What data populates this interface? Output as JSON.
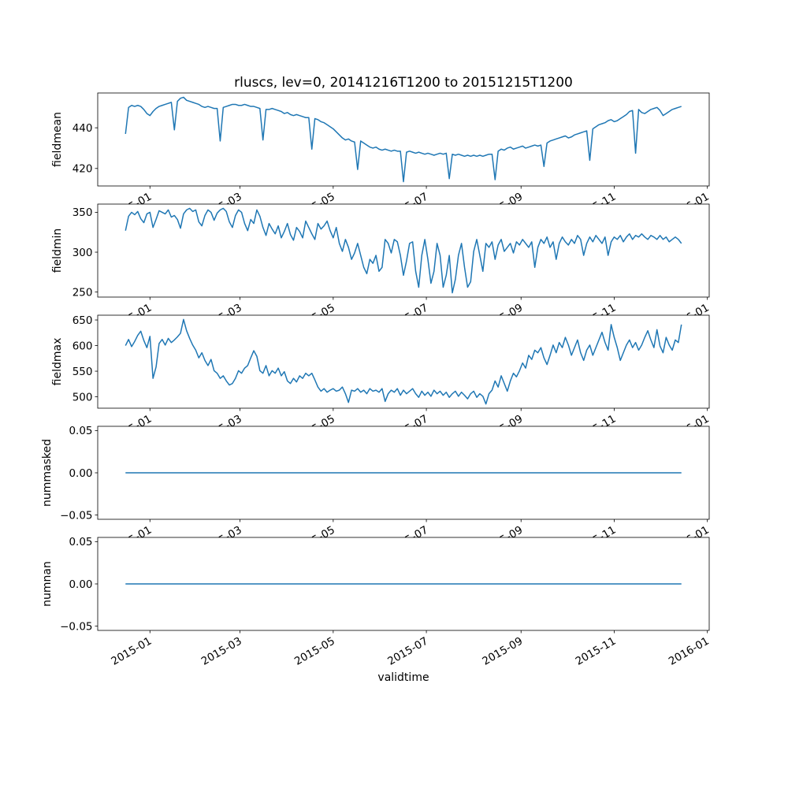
{
  "colors": {
    "line": "#1f77b4",
    "spine": "#000000",
    "text": "#000000",
    "background": "#ffffff"
  },
  "chart_data": {
    "type": "line",
    "title": "rluscs, lev=0, 20141216T1200 to 20151215T1200",
    "xlabel": "validtime",
    "x_unit": "days since 2014-12-16T12:00",
    "x_start_day": 0,
    "x_end_day": 364,
    "x_step_days": 2,
    "xlim_days": [
      -18.2,
      382.2
    ],
    "x_ticks": [
      {
        "day": 16,
        "label": "2015-01"
      },
      {
        "day": 75,
        "label": "2015-03"
      },
      {
        "day": 136,
        "label": "2015-05"
      },
      {
        "day": 197,
        "label": "2015-07"
      },
      {
        "day": 259,
        "label": "2015-09"
      },
      {
        "day": 320,
        "label": "2015-11"
      },
      {
        "day": 381,
        "label": "2016-01"
      }
    ],
    "subplots": [
      {
        "ylabel": "fieldmean",
        "ylim": [
          411.4,
          457.1
        ],
        "yticks": [
          {
            "value": 420,
            "label": "420"
          },
          {
            "value": 440,
            "label": "440"
          }
        ],
        "values": [
          437.0,
          450.0,
          451.0,
          450.5,
          451.0,
          450.5,
          449.0,
          447.0,
          446.0,
          448.0,
          449.5,
          450.5,
          451.0,
          451.5,
          452.0,
          452.5,
          439.0,
          453.0,
          454.5,
          455.0,
          453.5,
          453.0,
          452.5,
          452.0,
          451.5,
          450.5,
          450.0,
          450.5,
          450.0,
          449.5,
          449.5,
          433.5,
          450.0,
          450.5,
          451.0,
          451.5,
          451.5,
          451.0,
          451.0,
          451.5,
          451.0,
          450.5,
          450.5,
          450.0,
          449.5,
          434.0,
          449.0,
          449.0,
          449.5,
          449.0,
          448.5,
          448.0,
          447.0,
          447.5,
          446.5,
          446.0,
          446.5,
          446.0,
          445.5,
          445.0,
          445.0,
          429.5,
          444.5,
          444.0,
          443.0,
          442.5,
          441.5,
          440.5,
          439.5,
          438.0,
          436.5,
          435.0,
          434.0,
          434.5,
          433.5,
          433.0,
          419.5,
          433.5,
          432.5,
          431.5,
          430.5,
          430.0,
          430.5,
          429.5,
          429.0,
          429.5,
          429.0,
          428.5,
          429.0,
          428.5,
          428.5,
          413.5,
          428.0,
          428.5,
          428.0,
          427.5,
          428.0,
          427.5,
          427.0,
          427.5,
          427.0,
          426.5,
          427.0,
          427.5,
          427.0,
          427.5,
          415.0,
          427.0,
          426.5,
          427.0,
          426.5,
          426.0,
          426.5,
          426.0,
          426.5,
          426.0,
          426.5,
          426.0,
          426.5,
          427.0,
          427.0,
          414.5,
          428.5,
          429.5,
          429.0,
          430.0,
          430.5,
          429.5,
          430.0,
          430.5,
          431.0,
          430.0,
          430.5,
          431.0,
          431.5,
          431.0,
          431.5,
          421.0,
          432.5,
          433.5,
          434.0,
          434.5,
          435.0,
          435.5,
          436.0,
          435.0,
          435.5,
          436.5,
          437.0,
          437.5,
          438.0,
          438.5,
          424.0,
          439.5,
          440.5,
          441.5,
          442.0,
          442.5,
          443.5,
          444.0,
          443.0,
          443.5,
          444.5,
          445.5,
          446.5,
          448.0,
          448.5,
          427.5,
          449.0,
          447.5,
          447.0,
          448.0,
          449.0,
          449.5,
          450.0,
          448.5,
          446.0,
          447.0,
          448.0,
          449.0,
          449.5,
          450.0,
          450.5
        ]
      },
      {
        "ylabel": "fieldmin",
        "ylim": [
          243.7,
          360.3
        ],
        "yticks": [
          {
            "value": 250,
            "label": "250"
          },
          {
            "value": 300,
            "label": "300"
          },
          {
            "value": 350,
            "label": "350"
          }
        ],
        "values": [
          327,
          345,
          350,
          347,
          351,
          342,
          337,
          348,
          350,
          331,
          341,
          352,
          350,
          348,
          353,
          344,
          346,
          341,
          330,
          348,
          353,
          355,
          351,
          353,
          338,
          333,
          346,
          353,
          350,
          340,
          349,
          353,
          355,
          351,
          338,
          331,
          346,
          353,
          350,
          336,
          327,
          341,
          336,
          353,
          345,
          331,
          321,
          336,
          329,
          323,
          333,
          318,
          326,
          336,
          322,
          315,
          331,
          326,
          318,
          339,
          331,
          323,
          316,
          336,
          329,
          333,
          339,
          327,
          318,
          331,
          311,
          301,
          316,
          306,
          291,
          299,
          311,
          296,
          281,
          273,
          291,
          286,
          296,
          276,
          281,
          316,
          311,
          299,
          316,
          313,
          296,
          271,
          289,
          311,
          313,
          276,
          256,
          296,
          316,
          291,
          261,
          276,
          311,
          296,
          256,
          271,
          296,
          249,
          266,
          296,
          311,
          281,
          256,
          263,
          301,
          316,
          296,
          276,
          311,
          306,
          313,
          291,
          309,
          316,
          301,
          306,
          311,
          299,
          313,
          309,
          316,
          311,
          306,
          313,
          281,
          306,
          316,
          311,
          319,
          306,
          313,
          291,
          311,
          319,
          313,
          309,
          316,
          311,
          321,
          316,
          296,
          311,
          319,
          313,
          321,
          316,
          311,
          319,
          296,
          313,
          319,
          316,
          321,
          313,
          319,
          323,
          316,
          321,
          319,
          323,
          319,
          316,
          321,
          319,
          316,
          321,
          316,
          319,
          313,
          316,
          319,
          316,
          311
        ]
      },
      {
        "ylabel": "fieldmax",
        "ylim": [
          477.8,
          659.3
        ],
        "yticks": [
          {
            "value": 500,
            "label": "500"
          },
          {
            "value": 550,
            "label": "550"
          },
          {
            "value": 600,
            "label": "600"
          },
          {
            "value": 650,
            "label": "650"
          }
        ],
        "values": [
          600,
          612,
          598,
          608,
          620,
          628,
          610,
          596,
          618,
          536,
          558,
          604,
          612,
          601,
          614,
          606,
          611,
          617,
          624,
          651,
          629,
          614,
          601,
          591,
          576,
          586,
          571,
          561,
          573,
          551,
          546,
          536,
          541,
          531,
          523,
          526,
          536,
          551,
          546,
          556,
          561,
          576,
          590,
          579,
          551,
          546,
          561,
          541,
          551,
          546,
          556,
          541,
          549,
          531,
          526,
          536,
          529,
          541,
          536,
          546,
          541,
          546,
          533,
          519,
          511,
          516,
          509,
          513,
          516,
          511,
          513,
          519,
          506,
          489,
          513,
          511,
          516,
          509,
          513,
          506,
          516,
          511,
          513,
          509,
          516,
          491,
          506,
          513,
          509,
          516,
          503,
          513,
          506,
          511,
          516,
          506,
          499,
          511,
          503,
          509,
          501,
          513,
          506,
          511,
          503,
          509,
          499,
          506,
          511,
          501,
          509,
          503,
          496,
          506,
          511,
          499,
          506,
          501,
          486,
          506,
          513,
          531,
          519,
          541,
          526,
          511,
          531,
          546,
          539,
          551,
          566,
          556,
          581,
          573,
          591,
          586,
          596,
          576,
          563,
          581,
          601,
          586,
          606,
          596,
          616,
          601,
          581,
          596,
          611,
          586,
          571,
          591,
          601,
          581,
          596,
          611,
          626,
          606,
          591,
          641,
          616,
          596,
          571,
          586,
          601,
          611,
          596,
          606,
          591,
          601,
          616,
          629,
          611,
          596,
          631,
          599,
          586,
          616,
          601,
          591,
          611,
          606,
          641
        ]
      },
      {
        "ylabel": "nummasked",
        "ylim": [
          -0.055,
          0.055
        ],
        "yticks": [
          {
            "value": -0.05,
            "label": "−0.05"
          },
          {
            "value": 0,
            "label": "0.00"
          },
          {
            "value": 0.05,
            "label": "0.05"
          }
        ],
        "constant_value": 0.0
      },
      {
        "ylabel": "numnan",
        "ylim": [
          -0.055,
          0.055
        ],
        "yticks": [
          {
            "value": -0.05,
            "label": "−0.05"
          },
          {
            "value": 0,
            "label": "0.00"
          },
          {
            "value": 0.05,
            "label": "0.05"
          }
        ],
        "constant_value": 0.0
      }
    ]
  }
}
